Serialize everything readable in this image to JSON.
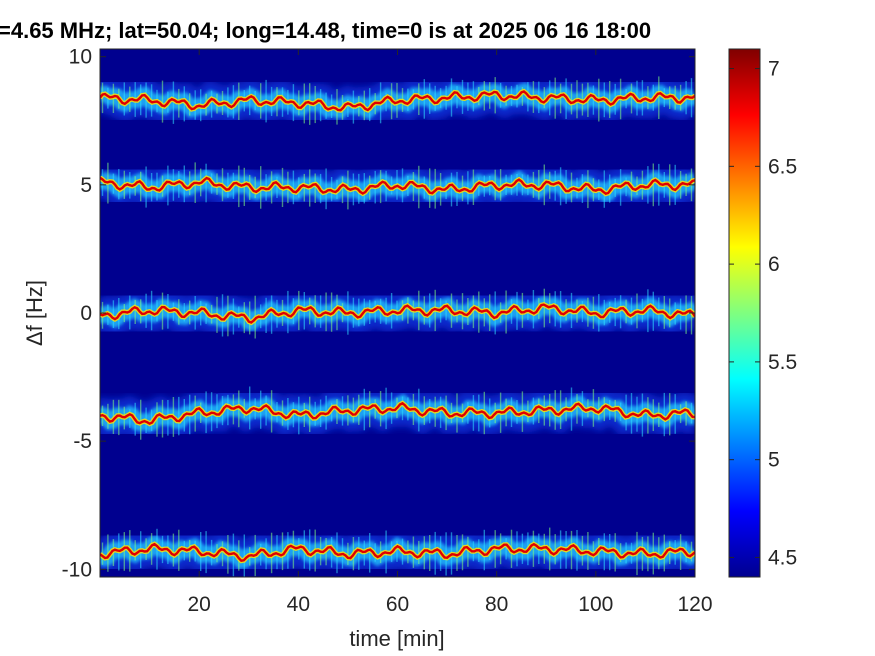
{
  "chart_data": {
    "type": "heatmap",
    "title": "=4.65 MHz;  lat=50.04; long=14.48, time=0 is at 2025 06 16 18:00",
    "xlabel": "time [min]",
    "ylabel": "Δf [Hz]",
    "xlim": [
      0,
      120
    ],
    "ylim": [
      -10.3,
      10.3
    ],
    "xticks": [
      20,
      40,
      60,
      80,
      100,
      120
    ],
    "yticks": [
      10,
      5,
      0,
      -5,
      -10
    ],
    "colorbar": {
      "ticks": [
        4.5,
        5,
        5.5,
        6,
        6.5,
        7
      ],
      "range": [
        4.4,
        7.1
      ],
      "colormap": "jet"
    },
    "background_color": "#00008f",
    "traces": [
      {
        "center_hz": 8.3,
        "points": [
          [
            0,
            8.4
          ],
          [
            10,
            8.3
          ],
          [
            20,
            8.1
          ],
          [
            30,
            8.3
          ],
          [
            40,
            8.2
          ],
          [
            50,
            8.0
          ],
          [
            60,
            8.3
          ],
          [
            70,
            8.4
          ],
          [
            80,
            8.5
          ],
          [
            90,
            8.4
          ],
          [
            100,
            8.3
          ],
          [
            110,
            8.4
          ],
          [
            120,
            8.4
          ]
        ]
      },
      {
        "center_hz": 5.0,
        "points": [
          [
            0,
            5.1
          ],
          [
            10,
            4.9
          ],
          [
            20,
            5.1
          ],
          [
            30,
            4.9
          ],
          [
            40,
            4.9
          ],
          [
            50,
            4.8
          ],
          [
            60,
            5.0
          ],
          [
            70,
            4.8
          ],
          [
            80,
            5.0
          ],
          [
            90,
            5.0
          ],
          [
            100,
            4.8
          ],
          [
            110,
            5.0
          ],
          [
            120,
            5.0
          ]
        ]
      },
      {
        "center_hz": 0.0,
        "points": [
          [
            0,
            -0.1
          ],
          [
            10,
            0.1
          ],
          [
            20,
            0.0
          ],
          [
            30,
            -0.2
          ],
          [
            40,
            0.1
          ],
          [
            50,
            0.0
          ],
          [
            60,
            0.1
          ],
          [
            70,
            0.1
          ],
          [
            80,
            0.0
          ],
          [
            90,
            0.2
          ],
          [
            100,
            0.0
          ],
          [
            110,
            0.1
          ],
          [
            120,
            -0.1
          ]
        ]
      },
      {
        "center_hz": -3.9,
        "points": [
          [
            0,
            -4.0
          ],
          [
            10,
            -4.2
          ],
          [
            20,
            -3.9
          ],
          [
            30,
            -3.7
          ],
          [
            40,
            -4.0
          ],
          [
            50,
            -3.8
          ],
          [
            60,
            -3.7
          ],
          [
            70,
            -3.9
          ],
          [
            80,
            -3.9
          ],
          [
            90,
            -3.8
          ],
          [
            100,
            -3.7
          ],
          [
            110,
            -4.0
          ],
          [
            120,
            -3.9
          ]
        ]
      },
      {
        "center_hz": -9.3,
        "points": [
          [
            0,
            -9.4
          ],
          [
            10,
            -9.2
          ],
          [
            20,
            -9.3
          ],
          [
            30,
            -9.5
          ],
          [
            40,
            -9.2
          ],
          [
            50,
            -9.4
          ],
          [
            60,
            -9.3
          ],
          [
            70,
            -9.4
          ],
          [
            80,
            -9.2
          ],
          [
            90,
            -9.2
          ],
          [
            100,
            -9.3
          ],
          [
            110,
            -9.4
          ],
          [
            120,
            -9.3
          ]
        ]
      }
    ]
  }
}
